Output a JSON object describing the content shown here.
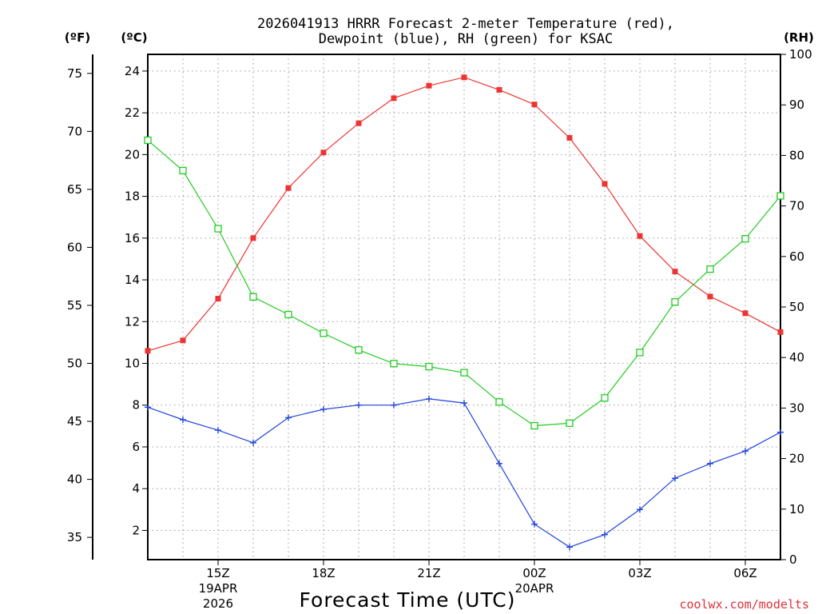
{
  "chart_data": {
    "type": "line",
    "title": [
      "2026041913 HRRR Forecast 2-meter Temperature (red),",
      "Dewpoint (blue), RH (green) for KSAC"
    ],
    "xlabel": "Forecast Time (UTC)",
    "credit": "coolwx.com/modelts",
    "units": {
      "fahrenheit": "(ºF)",
      "celsius": "(ºC)",
      "rh": "(RH)"
    },
    "x_hours": [
      13,
      14,
      15,
      16,
      17,
      18,
      19,
      20,
      21,
      22,
      23,
      24,
      25,
      26,
      27,
      28,
      29,
      30,
      31
    ],
    "xlim": [
      13,
      31
    ],
    "x_ticks": [
      {
        "hour": 15,
        "label": "15Z",
        "date": "19APR",
        "year": "2026"
      },
      {
        "hour": 18,
        "label": "18Z"
      },
      {
        "hour": 21,
        "label": "21Z"
      },
      {
        "hour": 24,
        "label": "00Z",
        "date": "20APR"
      },
      {
        "hour": 27,
        "label": "03Z"
      },
      {
        "hour": 30,
        "label": "06Z"
      }
    ],
    "ylim_celsius": [
      0.6,
      24.8
    ],
    "celsius_ticks": [
      2,
      4,
      6,
      8,
      10,
      12,
      14,
      16,
      18,
      20,
      22,
      24
    ],
    "fahrenheit_ticks": [
      35,
      40,
      45,
      50,
      55,
      60,
      65,
      70,
      75
    ],
    "rh_ticks": [
      0,
      10,
      20,
      30,
      40,
      50,
      60,
      70,
      80,
      90,
      100
    ],
    "ylim_rh": [
      0,
      100
    ],
    "series": [
      {
        "name": "Temperature",
        "units": "C",
        "color": "#ee3333",
        "marker": "filled-square",
        "values": [
          10.6,
          11.1,
          13.1,
          16.0,
          18.4,
          20.1,
          21.5,
          22.7,
          23.3,
          23.7,
          23.1,
          22.4,
          20.8,
          18.6,
          16.1,
          14.4,
          13.2,
          12.4,
          11.5
        ]
      },
      {
        "name": "Dewpoint",
        "units": "C",
        "color": "#2244dd",
        "marker": "plus",
        "values": [
          7.9,
          7.3,
          6.8,
          6.2,
          7.4,
          7.8,
          8.0,
          8.0,
          8.3,
          8.1,
          5.2,
          2.3,
          1.2,
          1.8,
          3.0,
          4.5,
          5.2,
          5.8,
          6.7
        ]
      },
      {
        "name": "RH",
        "units": "%",
        "color": "#22cc22",
        "marker": "open-square",
        "values": [
          83,
          77,
          65.5,
          52,
          48.5,
          44.8,
          41.5,
          38.8,
          38.2,
          37,
          31.2,
          26.5,
          27,
          32,
          41,
          51,
          57.5,
          63.5,
          72
        ]
      }
    ]
  }
}
